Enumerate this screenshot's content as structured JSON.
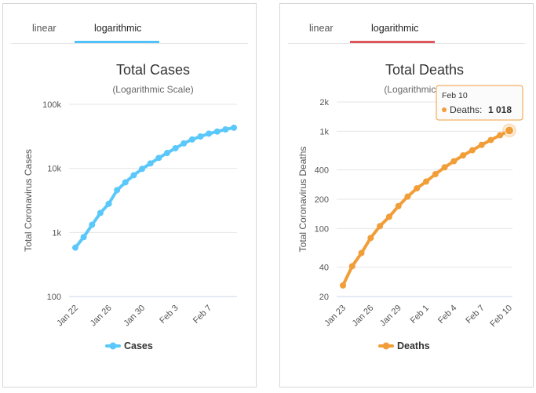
{
  "panels": [
    {
      "tabs": {
        "linear": "linear",
        "log": "logarithmic"
      },
      "accent": "#4fc3f7"
    },
    {
      "tabs": {
        "linear": "linear",
        "log": "logarithmic"
      },
      "accent": "#e0575b"
    }
  ],
  "chart_data": [
    {
      "type": "line",
      "title": "Total Cases",
      "subtitle": "(Logarithmic Scale)",
      "ylabel": "Total Coronavirus Cases",
      "xlabel": "",
      "yscale": "log",
      "ylim": [
        100,
        100000
      ],
      "yticks": [
        100,
        1000,
        10000,
        100000
      ],
      "ytick_labels": [
        "100",
        "1k",
        "10k",
        "100k"
      ],
      "x": [
        "Jan 22",
        "Jan 23",
        "Jan 24",
        "Jan 25",
        "Jan 26",
        "Jan 27",
        "Jan 28",
        "Jan 29",
        "Jan 30",
        "Jan 31",
        "Feb 1",
        "Feb 2",
        "Feb 3",
        "Feb 4",
        "Feb 5",
        "Feb 6",
        "Feb 7",
        "Feb 8",
        "Feb 9",
        "Feb 10"
      ],
      "xtick_labels": [
        "Jan 22",
        "Jan 26",
        "Jan 30",
        "Feb 3",
        "Feb 7"
      ],
      "series": [
        {
          "name": "Cases",
          "color": "#5ac8fa",
          "values": [
            580,
            845,
            1317,
            2015,
            2800,
            4581,
            6058,
            7813,
            9823,
            11950,
            14553,
            17391,
            20630,
            24554,
            28276,
            31481,
            34886,
            37558,
            40554,
            43103
          ]
        }
      ],
      "legend": "Cases"
    },
    {
      "type": "line",
      "title": "Total Deaths",
      "subtitle": "(Logarithmic Scale)",
      "ylabel": "Total Coronavirus Deaths",
      "xlabel": "",
      "yscale": "log",
      "ylim": [
        20,
        2000
      ],
      "yticks": [
        20,
        40,
        100,
        200,
        400,
        1000,
        2000
      ],
      "ytick_labels": [
        "20",
        "40",
        "100",
        "200",
        "400",
        "1k",
        "2k"
      ],
      "x": [
        "Jan 23",
        "Jan 24",
        "Jan 25",
        "Jan 26",
        "Jan 27",
        "Jan 28",
        "Jan 29",
        "Jan 30",
        "Jan 31",
        "Feb 1",
        "Feb 2",
        "Feb 3",
        "Feb 4",
        "Feb 5",
        "Feb 6",
        "Feb 7",
        "Feb 8",
        "Feb 9",
        "Feb 10"
      ],
      "xtick_labels": [
        "Jan 23",
        "Jan 26",
        "Jan 29",
        "Feb 1",
        "Feb 4",
        "Feb 7",
        "Feb 10"
      ],
      "series": [
        {
          "name": "Deaths",
          "color": "#f19d38",
          "values": [
            26,
            41,
            56,
            80,
            106,
            132,
            170,
            213,
            259,
            304,
            362,
            426,
            492,
            565,
            638,
            724,
            813,
            910,
            1018
          ]
        }
      ],
      "legend": "Deaths",
      "tooltip": {
        "date": "Feb 10",
        "label": "Deaths:",
        "value": "1 018"
      }
    }
  ]
}
